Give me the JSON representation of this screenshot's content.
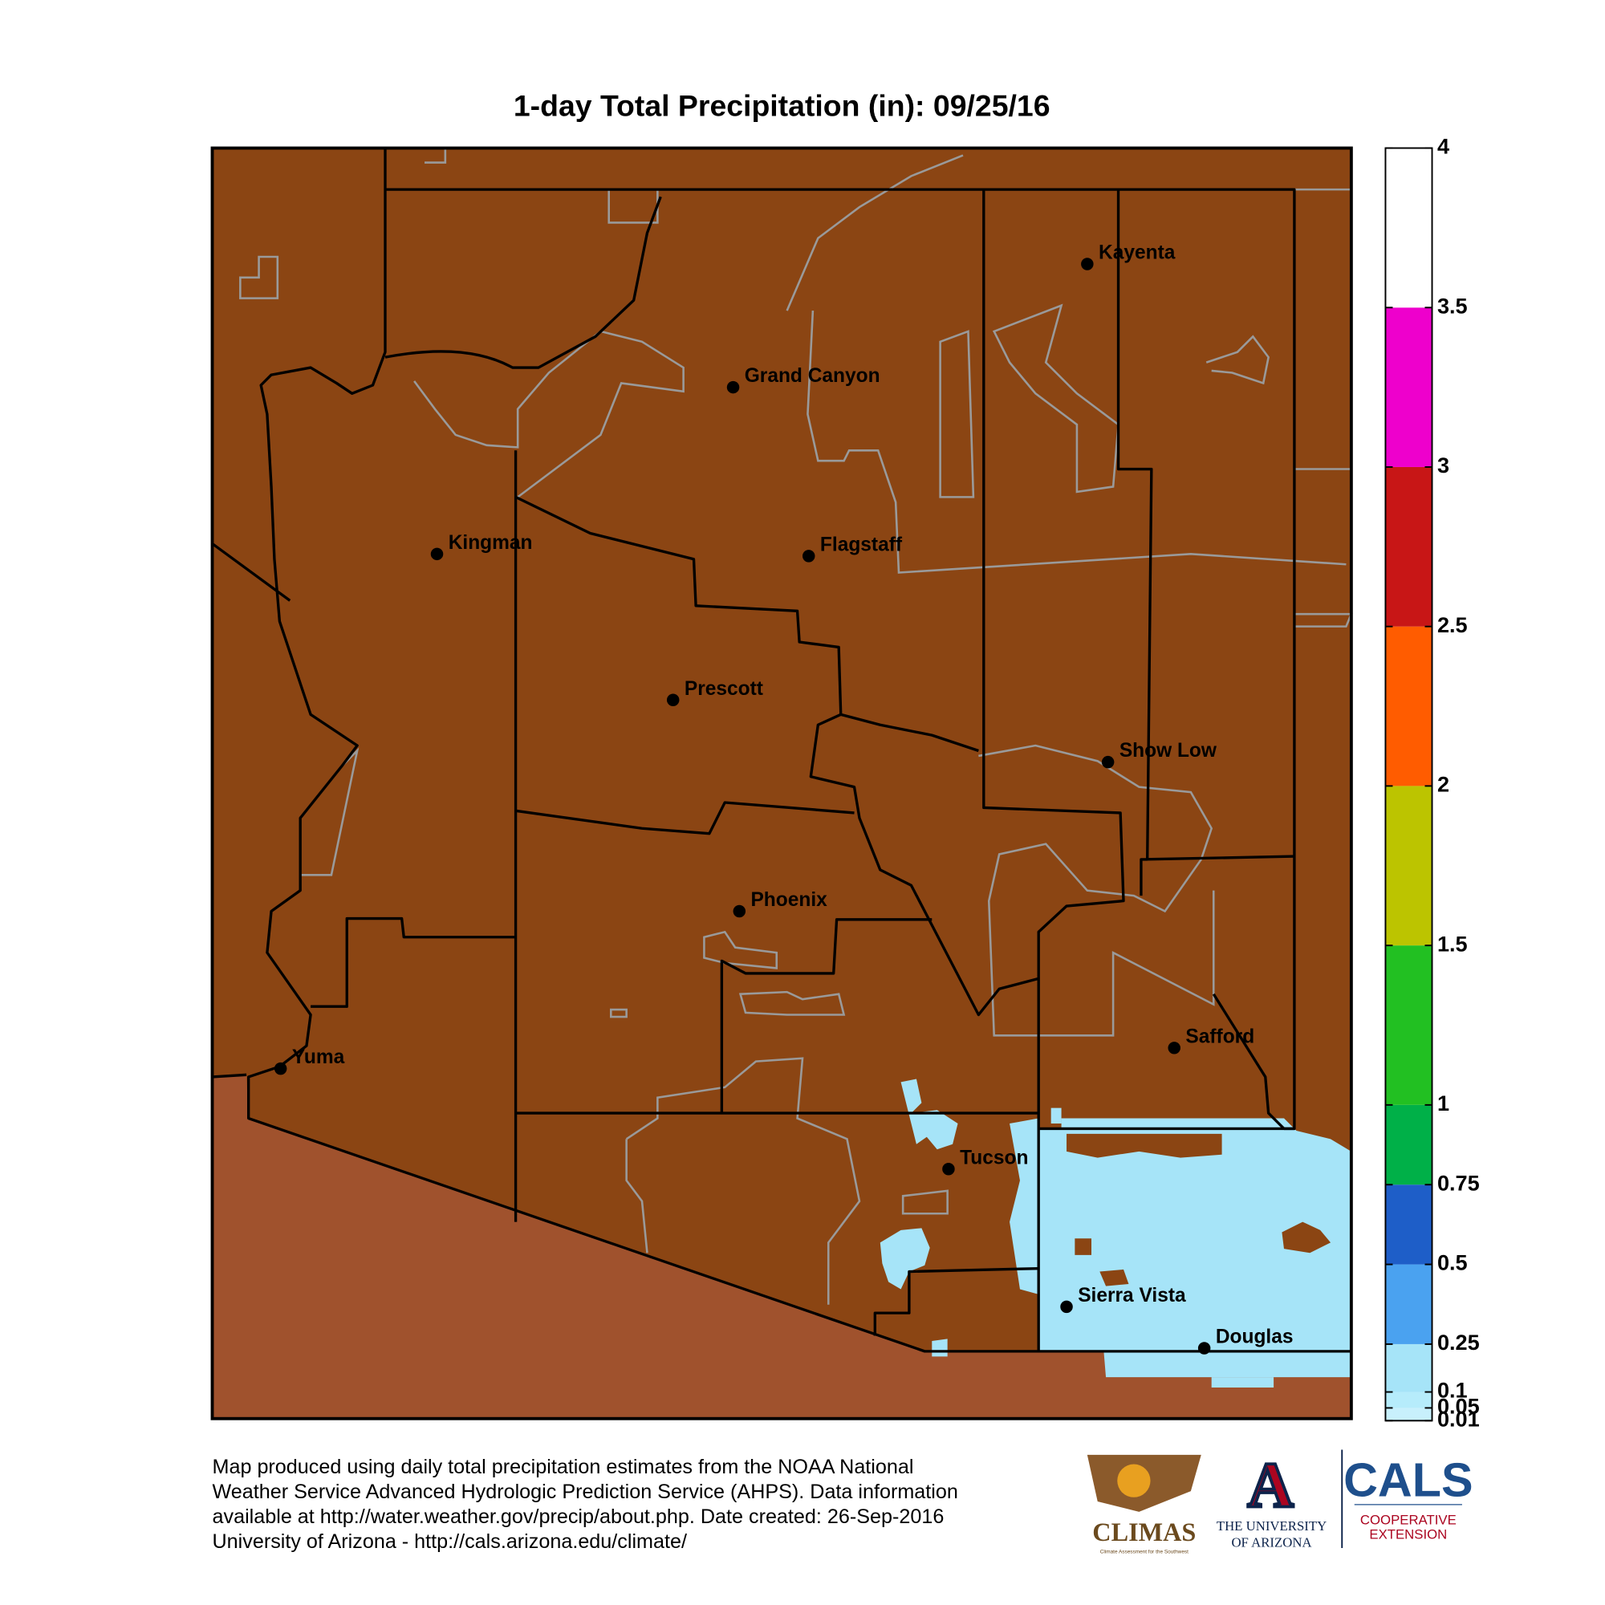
{
  "title": "1-day Total Precipitation (in): 09/25/16",
  "colorbar": {
    "lim": [
      0.01,
      4
    ],
    "ticks": [
      0.01,
      0.05,
      0.1,
      0.25,
      0.5,
      0.75,
      1,
      1.5,
      2,
      2.5,
      3,
      3.5,
      4
    ],
    "colors": [
      "#c8f0fc",
      "#b6ecfb",
      "#a6e4f8",
      "#4aa2f0",
      "#1e5ec8",
      "#00b048",
      "#22c022",
      "#bcc400",
      "#ff5c00",
      "#c81616",
      "#ee00cc",
      "#ffffff"
    ]
  },
  "map_colors": {
    "land": "#8b4513",
    "outside": "#a0522d",
    "rain": "#a6e4f8"
  },
  "cities": [
    "Kayenta",
    "Grand Canyon",
    "Kingman",
    "Flagstaff",
    "Prescott",
    "Show Low",
    "Phoenix",
    "Safford",
    "Yuma",
    "Tucson",
    "Sierra Vista",
    "Douglas"
  ],
  "footer": [
    "Map produced using daily total precipitation estimates from the NOAA National",
    "Weather Service Advanced Hydrologic Prediction Service (AHPS). Data information",
    "available at http://water.weather.gov/precip/about.php. Date created: 26-Sep-2016",
    "University of Arizona - http://cals.arizona.edu/climate/"
  ],
  "logos": {
    "climas": "CLIMAS",
    "climas_sub": "Climate Assessment for the Southwest",
    "ua_mark": "A",
    "ua": [
      "THE UNIVERSITY",
      "OF ARIZONA"
    ],
    "cals": "CALS",
    "cals_sub": [
      "COOPERATIVE",
      "EXTENSION"
    ]
  }
}
